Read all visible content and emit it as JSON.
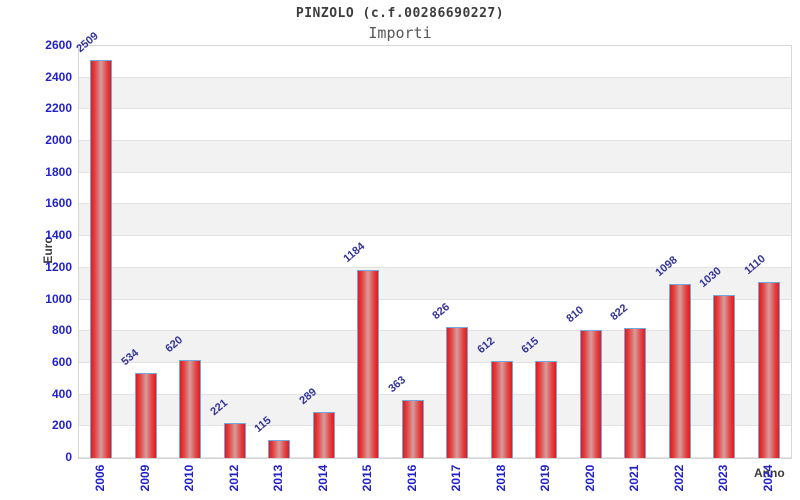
{
  "chart_data": {
    "type": "bar",
    "title": "PINZOLO (c.f.00286690227)",
    "subtitle": "Importi",
    "xlabel": "Anno",
    "ylabel": "Euro",
    "categories": [
      "2006",
      "2009",
      "2010",
      "2012",
      "2013",
      "2014",
      "2015",
      "2016",
      "2017",
      "2018",
      "2019",
      "2020",
      "2021",
      "2022",
      "2023",
      "2024"
    ],
    "values": [
      2509,
      534,
      620,
      221,
      115,
      289,
      1184,
      363,
      826,
      612,
      615,
      810,
      822,
      1098,
      1030,
      1110
    ],
    "value_labels": [
      "2509",
      "534",
      "620",
      "221",
      "115",
      "289",
      "1184",
      "363",
      "826",
      "612",
      "615",
      "810",
      "822",
      "1098",
      "1030",
      "1110"
    ],
    "ylim": [
      0,
      2600
    ],
    "ytick_step": 200,
    "yticks": [
      0,
      200,
      400,
      600,
      800,
      1000,
      1200,
      1400,
      1600,
      1800,
      2000,
      2200,
      2400,
      2600
    ],
    "grid": "horizontal-bands-alternating",
    "legend": "none",
    "colors": {
      "bar_edge_red": "#e41a1a",
      "bar_center_pink": "#d89c9c",
      "bar_border_blue": "#74a8dc",
      "tick_label_blue": "#2222cc",
      "value_label_navy": "#333399",
      "band_gray": "#f2f2f2",
      "grid_line": "#e2e2e2",
      "title_gray": "#3c3c3c"
    }
  }
}
